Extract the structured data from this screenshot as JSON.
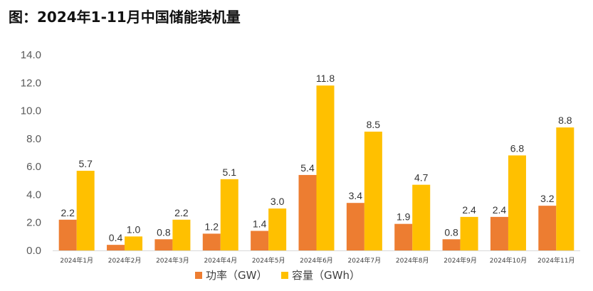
{
  "title": "图：2024年1-11月中国储能装机量",
  "chart_data": {
    "type": "bar",
    "categories": [
      "2024年1月",
      "2024年2月",
      "2024年3月",
      "2024年4月",
      "2024年5月",
      "2024年6月",
      "2024年7月",
      "2024年8月",
      "2024年9月",
      "2024年10月",
      "2024年11月"
    ],
    "series": [
      {
        "name": "功率（GW）",
        "color": "#ED7D31",
        "values": [
          2.2,
          0.4,
          0.8,
          1.2,
          1.4,
          5.4,
          3.4,
          1.9,
          0.8,
          2.4,
          3.2
        ]
      },
      {
        "name": "容量（GWh）",
        "color": "#FFC000",
        "values": [
          5.7,
          1.0,
          2.2,
          5.1,
          3.0,
          11.8,
          8.5,
          4.7,
          2.4,
          6.8,
          8.8
        ]
      }
    ],
    "ylim": [
      0,
      14
    ],
    "yticks": [
      "0.0",
      "2.0",
      "4.0",
      "6.0",
      "8.0",
      "10.0",
      "12.0",
      "14.0"
    ],
    "grid": false,
    "legend": "bottom"
  }
}
